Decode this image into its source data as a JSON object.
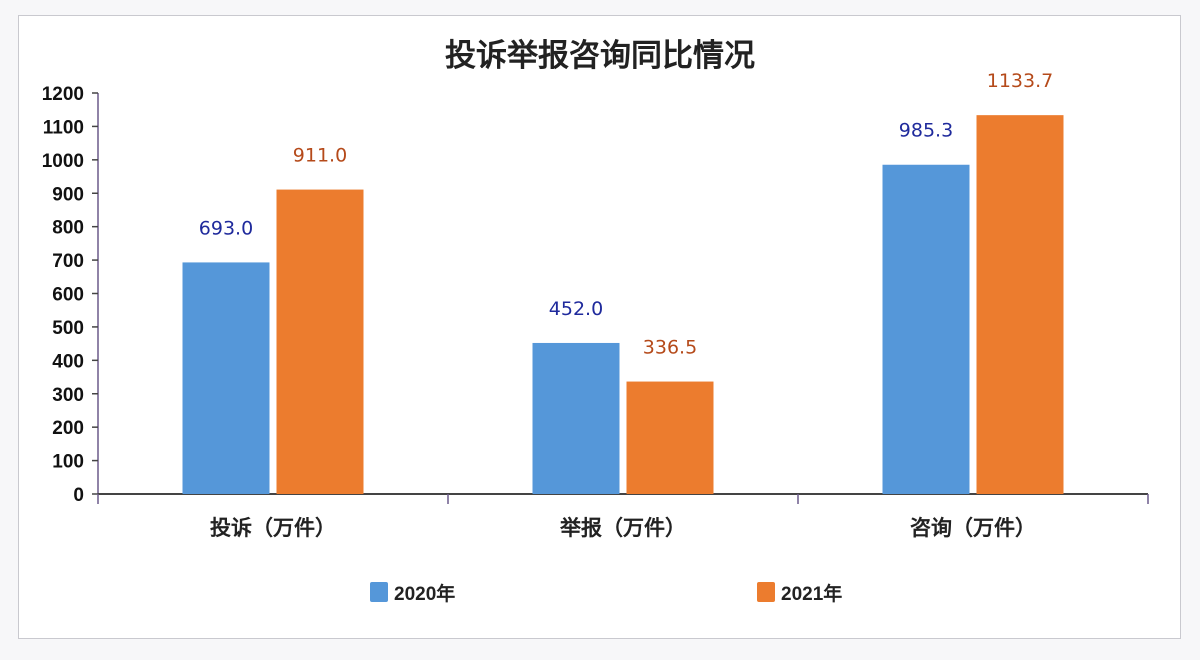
{
  "chart_data": {
    "type": "bar",
    "title": "投诉举报咨询同比情况",
    "categories": [
      "投诉（万件）",
      "举报（万件）",
      "咨询（万件）"
    ],
    "series": [
      {
        "name": "2020年",
        "values": [
          693.0,
          452.0,
          985.3
        ],
        "color": "#5597d9",
        "label_color": "#1f2a9c"
      },
      {
        "name": "2021年",
        "values": [
          911.0,
          336.5,
          1133.7
        ],
        "color": "#ec7c2e",
        "label_color": "#b54a1a"
      }
    ],
    "ylim": [
      0,
      1200
    ],
    "yticks": [
      0,
      100,
      200,
      300,
      400,
      500,
      600,
      700,
      800,
      900,
      1000,
      1100,
      1200
    ],
    "grid": false,
    "legend_position": "bottom",
    "xlabel": "",
    "ylabel": ""
  }
}
